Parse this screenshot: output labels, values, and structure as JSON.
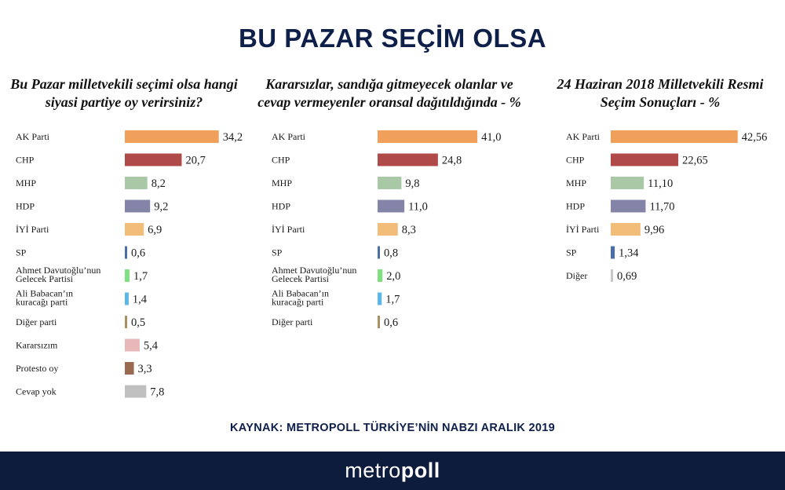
{
  "title": "BU PAZAR SEÇİM OLSA",
  "source": "KAYNAK: METROPOLL TÜRKİYE’NİN NABZI ARALIK 2019",
  "logo": {
    "light": "metro",
    "bold": "poll"
  },
  "colors": {
    "AK Parti": "#f0a05a",
    "CHP": "#b04a48",
    "MHP": "#a9c9a6",
    "HDP": "#8484a8",
    "İYİ Parti": "#f2bd78",
    "SP": "#4a6fa8",
    "Ahmet Davutoğlu’nun Gelecek Partisi": "#7fe07f",
    "Ali Babacan’ın kuracağı parti": "#5ab8e8",
    "Diğer parti": "#a89060",
    "Kararsızım": "#e8b8b8",
    "Protesto oy": "#9a6a50",
    "Cevap yok": "#c0c0c0",
    "Diğer": "#c8c8c8"
  },
  "chart_data": [
    {
      "type": "bar",
      "orientation": "horizontal",
      "title": "Bu Pazar milletvekili seçimi olsa hangi siyasi partiye oy verirsiniz?",
      "categories": [
        "AK Parti",
        "CHP",
        "MHP",
        "HDP",
        "İYİ Parti",
        "SP",
        "Ahmet Davutoğlu’nun Gelecek Partisi",
        "Ali Babacan’ın kuracağı parti",
        "Diğer parti",
        "Kararsızım",
        "Protesto oy",
        "Cevap yok"
      ],
      "values": [
        34.2,
        20.7,
        8.2,
        9.2,
        6.9,
        0.6,
        1.7,
        1.4,
        0.5,
        5.4,
        3.3,
        7.8
      ],
      "value_labels": [
        "34,2",
        "20,7",
        "8,2",
        "9,2",
        "6,9",
        "0,6",
        "1,7",
        "1,4",
        "0,5",
        "5,4",
        "3,3",
        "7,8"
      ]
    },
    {
      "type": "bar",
      "orientation": "horizontal",
      "title": "Kararsızlar, sandığa gitmeyecek olanlar ve cevap vermeyenler oransal dağıtıldığında - %",
      "categories": [
        "AK Parti",
        "CHP",
        "MHP",
        "HDP",
        "İYİ Parti",
        "SP",
        "Ahmet Davutoğlu’nun Gelecek Partisi",
        "Ali Babacan’ın kuracağı parti",
        "Diğer parti"
      ],
      "values": [
        41.0,
        24.8,
        9.8,
        11.0,
        8.3,
        0.8,
        2.0,
        1.7,
        0.6
      ],
      "value_labels": [
        "41,0",
        "24,8",
        "9,8",
        "11,0",
        "8,3",
        "0,8",
        "2,0",
        "1,7",
        "0,6"
      ]
    },
    {
      "type": "bar",
      "orientation": "horizontal",
      "title": "24 Haziran 2018 Milletvekili Resmi Seçim Sonuçları - %",
      "categories": [
        "AK Parti",
        "CHP",
        "MHP",
        "HDP",
        "İYİ Parti",
        "SP",
        "Diğer"
      ],
      "values": [
        42.56,
        22.65,
        11.1,
        11.7,
        9.96,
        1.34,
        0.69
      ],
      "value_labels": [
        "42,56",
        "22,65",
        "11,10",
        "11,70",
        "9,96",
        "1,34",
        "0,69"
      ]
    }
  ]
}
